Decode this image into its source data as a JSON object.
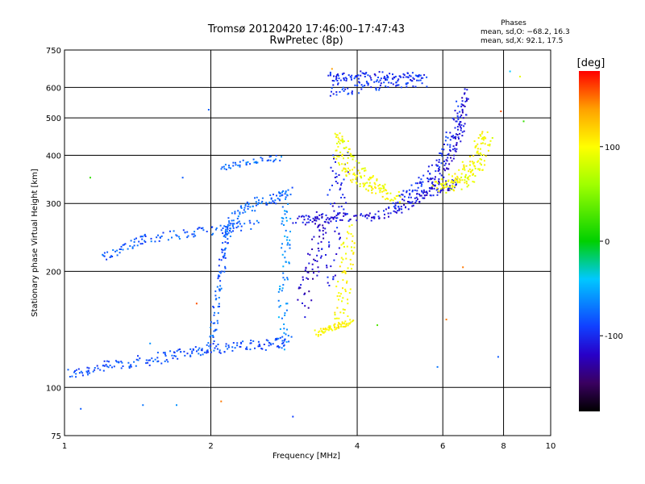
{
  "chart_data": {
    "type": "scatter",
    "title": "Tromsø 20120420 17:46:00–17:47:43",
    "subtitle": "RwPretec (8p)",
    "xlabel": "Frequency [MHz]",
    "ylabel": "Stationary phase Virtual Height [km]",
    "x_scale": "log",
    "y_scale": "log",
    "xlim": [
      1,
      10
    ],
    "ylim": [
      75,
      750
    ],
    "x_ticks": [
      {
        "value": 1,
        "label": "1"
      },
      {
        "value": 2,
        "label": "2"
      },
      {
        "value": 4,
        "label": "4"
      },
      {
        "value": 6,
        "label": "6"
      },
      {
        "value": 8,
        "label": "8"
      },
      {
        "value": 10,
        "label": "10"
      }
    ],
    "y_ticks": [
      {
        "value": 75,
        "label": "75"
      },
      {
        "value": 100,
        "label": "100"
      },
      {
        "value": 200,
        "label": "200"
      },
      {
        "value": 300,
        "label": "300"
      },
      {
        "value": 400,
        "label": "400"
      },
      {
        "value": 500,
        "label": "500"
      },
      {
        "value": 600,
        "label": "600"
      },
      {
        "value": 750,
        "label": "750"
      }
    ],
    "grid": true,
    "stats": {
      "header": "Phases",
      "line1": "mean, sd,O: −68.2, 16.3",
      "line2": "mean, sd,X:  92.1, 17.5"
    },
    "colorbar": {
      "label": "[deg]",
      "range": [
        -180,
        180
      ],
      "ticks": [
        {
          "value": 100,
          "label": "100"
        },
        {
          "value": 0,
          "label": "0"
        },
        {
          "value": -100,
          "label": "-100"
        }
      ],
      "stops": [
        {
          "value": -180,
          "color": "#000000"
        },
        {
          "value": -150,
          "color": "#3a0060"
        },
        {
          "value": -120,
          "color": "#2800c8"
        },
        {
          "value": -90,
          "color": "#1040ff"
        },
        {
          "value": -40,
          "color": "#00c8ff"
        },
        {
          "value": 0,
          "color": "#00d000"
        },
        {
          "value": 60,
          "color": "#a0ff00"
        },
        {
          "value": 100,
          "color": "#ffff00"
        },
        {
          "value": 140,
          "color": "#ffa000"
        },
        {
          "value": 180,
          "color": "#ff0000"
        }
      ]
    },
    "traces": [
      {
        "points": [
          [
            1.02,
            108
          ],
          [
            1.15,
            112
          ],
          [
            1.3,
            115
          ],
          [
            1.5,
            118
          ],
          [
            1.7,
            122
          ],
          [
            1.9,
            125
          ],
          [
            2.1,
            127
          ],
          [
            2.4,
            128
          ],
          [
            2.7,
            130
          ],
          [
            2.9,
            132
          ]
        ],
        "phase": -85,
        "spread": 0.018
      },
      {
        "points": [
          [
            2.0,
            128
          ],
          [
            2.05,
            160
          ],
          [
            2.1,
            200
          ],
          [
            2.15,
            240
          ],
          [
            2.22,
            270
          ]
        ],
        "phase": -80,
        "spread": 0.015
      },
      {
        "points": [
          [
            2.15,
            250
          ],
          [
            2.3,
            290
          ],
          [
            2.5,
            300
          ],
          [
            2.75,
            310
          ],
          [
            2.9,
            320
          ]
        ],
        "phase": -75,
        "spread": 0.02
      },
      {
        "points": [
          [
            1.2,
            215
          ],
          [
            1.35,
            235
          ],
          [
            1.5,
            245
          ],
          [
            1.8,
            250
          ],
          [
            2.1,
            258
          ],
          [
            2.5,
            265
          ]
        ],
        "phase": -80,
        "spread": 0.015
      },
      {
        "points": [
          [
            2.1,
            370
          ],
          [
            2.4,
            385
          ],
          [
            2.8,
            395
          ]
        ],
        "phase": -75,
        "spread": 0.01
      },
      {
        "points": [
          [
            2.8,
            130
          ],
          [
            2.82,
            180
          ],
          [
            2.85,
            240
          ],
          [
            2.87,
            300
          ]
        ],
        "phase": -60,
        "spread": 0.02
      },
      {
        "points": [
          [
            3.0,
            270
          ],
          [
            3.3,
            275
          ],
          [
            3.7,
            276
          ],
          [
            4.2,
            277
          ],
          [
            4.7,
            285
          ],
          [
            5.2,
            300
          ],
          [
            5.6,
            320
          ],
          [
            6.0,
            330
          ],
          [
            6.4,
            340
          ]
        ],
        "phase": -110,
        "spread": 0.015
      },
      {
        "points": [
          [
            3.1,
            160
          ],
          [
            3.2,
            200
          ],
          [
            3.3,
            240
          ],
          [
            3.4,
            280
          ]
        ],
        "phase": -120,
        "spread": 0.03
      },
      {
        "points": [
          [
            3.45,
            180
          ],
          [
            3.55,
            250
          ],
          [
            3.65,
            320
          ],
          [
            3.7,
            390
          ]
        ],
        "phase": -105,
        "spread": 0.04
      },
      {
        "points": [
          [
            3.6,
            400
          ],
          [
            3.8,
            360
          ],
          [
            4.1,
            340
          ],
          [
            4.5,
            320
          ],
          [
            4.9,
            310
          ]
        ],
        "phase": 100,
        "spread": 0.02
      },
      {
        "points": [
          [
            3.6,
            450
          ],
          [
            3.8,
            420
          ],
          [
            4.2,
            350
          ],
          [
            4.6,
            325
          ]
        ],
        "phase": 95,
        "spread": 0.018
      },
      {
        "points": [
          [
            4.8,
            300
          ],
          [
            5.2,
            320
          ],
          [
            5.6,
            350
          ],
          [
            6.0,
            400
          ],
          [
            6.3,
            460
          ],
          [
            6.5,
            540
          ]
        ],
        "phase": -100,
        "spread": 0.02
      },
      {
        "points": [
          [
            5.5,
            320
          ],
          [
            6.0,
            360
          ],
          [
            6.4,
            420
          ],
          [
            6.6,
            500
          ],
          [
            6.7,
            600
          ]
        ],
        "phase": -115,
        "spread": 0.015
      },
      {
        "points": [
          [
            5.8,
            330
          ],
          [
            6.2,
            340
          ],
          [
            6.6,
            360
          ],
          [
            7.0,
            400
          ],
          [
            7.3,
            470
          ]
        ],
        "phase": 100,
        "spread": 0.02
      },
      {
        "points": [
          [
            6.2,
            330
          ],
          [
            6.8,
            350
          ],
          [
            7.2,
            380
          ],
          [
            7.5,
            450
          ]
        ],
        "phase": 95,
        "spread": 0.02
      },
      {
        "points": [
          [
            3.3,
            138
          ],
          [
            3.5,
            142
          ],
          [
            3.7,
            145
          ],
          [
            3.9,
            148
          ]
        ],
        "phase": 105,
        "spread": 0.01
      },
      {
        "points": [
          [
            3.7,
            150
          ],
          [
            3.75,
            180
          ],
          [
            3.8,
            220
          ],
          [
            3.85,
            260
          ]
        ],
        "phase": 100,
        "spread": 0.03
      },
      {
        "points": [
          [
            3.5,
            590
          ],
          [
            4.0,
            600
          ],
          [
            4.5,
            610
          ],
          [
            5.0,
            620
          ],
          [
            5.5,
            625
          ]
        ],
        "phase": -95,
        "spread": 0.02
      },
      {
        "points": [
          [
            3.5,
            640
          ],
          [
            3.8,
            640
          ],
          [
            4.2,
            645
          ],
          [
            4.8,
            640
          ],
          [
            5.5,
            640
          ]
        ],
        "phase": -100,
        "spread": 0.015
      }
    ],
    "scatter_points": [
      {
        "x": 1.13,
        "y": 350,
        "phase": 20
      },
      {
        "x": 1.75,
        "y": 350,
        "phase": -80
      },
      {
        "x": 1.98,
        "y": 525,
        "phase": -80
      },
      {
        "x": 3.55,
        "y": 670,
        "phase": 140
      },
      {
        "x": 5.85,
        "y": 113,
        "phase": -70
      },
      {
        "x": 7.9,
        "y": 520,
        "phase": 160
      },
      {
        "x": 8.25,
        "y": 660,
        "phase": -40
      },
      {
        "x": 8.65,
        "y": 640,
        "phase": 90
      },
      {
        "x": 8.8,
        "y": 490,
        "phase": 20
      },
      {
        "x": 6.6,
        "y": 205,
        "phase": 150
      },
      {
        "x": 1.08,
        "y": 88,
        "phase": -80
      },
      {
        "x": 1.45,
        "y": 90,
        "phase": -70
      },
      {
        "x": 1.7,
        "y": 90,
        "phase": -60
      },
      {
        "x": 2.1,
        "y": 92,
        "phase": 150
      },
      {
        "x": 2.95,
        "y": 84,
        "phase": -90
      },
      {
        "x": 1.87,
        "y": 165,
        "phase": 160
      },
      {
        "x": 1.5,
        "y": 130,
        "phase": -60
      },
      {
        "x": 7.8,
        "y": 120,
        "phase": -80
      },
      {
        "x": 6.1,
        "y": 150,
        "phase": 150
      },
      {
        "x": 4.4,
        "y": 145,
        "phase": 30
      }
    ]
  }
}
